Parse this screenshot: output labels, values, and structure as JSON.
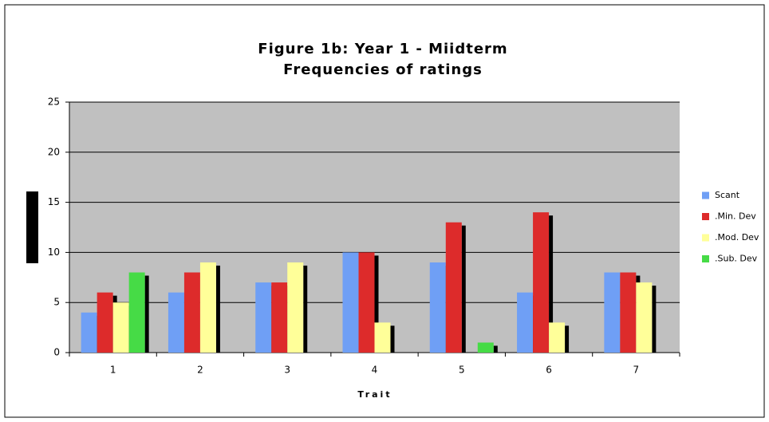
{
  "chart_data": {
    "type": "bar",
    "title": "Figure 1b: Year 1 - Miidterm",
    "subtitle": "Frequencies of ratings",
    "x_label": "Trait",
    "categories": [
      "1",
      "2",
      "3",
      "4",
      "5",
      "6",
      "7"
    ],
    "series": [
      {
        "name": "Scant",
        "color": "#6f9ff5",
        "values": [
          4,
          6,
          7,
          10,
          9,
          6,
          8
        ]
      },
      {
        "name": ".Min. Dev",
        "color": "#dd2b2b",
        "values": [
          6,
          8,
          7,
          10,
          13,
          14,
          8
        ]
      },
      {
        "name": ".Mod. Dev",
        "color": "#ffff99",
        "values": [
          5,
          9,
          9,
          3,
          0,
          3,
          7
        ]
      },
      {
        "name": ".Sub. Dev",
        "color": "#46db46",
        "values": [
          8,
          0,
          0,
          0,
          1,
          0,
          0
        ]
      }
    ],
    "ylim": [
      0,
      25
    ],
    "yticks": [
      0,
      5,
      10,
      15,
      20,
      25
    ],
    "grid": true,
    "legend": "right"
  }
}
